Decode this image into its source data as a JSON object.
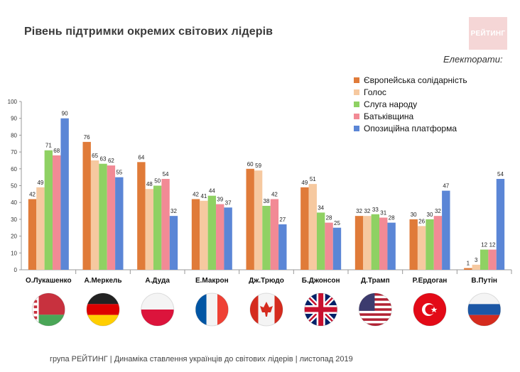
{
  "page": {
    "title": "Рівень підтримки окремих світових лідерів",
    "logo_text": "РЕЙТИНГ",
    "footer": "група РЕЙТИНГ | Динаміка ставлення українців до світових лідерів  | листопад 2019"
  },
  "legend": {
    "title": "Електорати:",
    "position": "top-right"
  },
  "chart_data": {
    "type": "bar",
    "categories": [
      "О.Лукашенко",
      "А.Меркель",
      "А.Дуда",
      "Е.Макрон",
      "Дж.Трюдо",
      "Б.Джонсон",
      "Д.Трамп",
      "Р.Ердоган",
      "В.Путін"
    ],
    "series": [
      {
        "name": "Європейська солідарність",
        "color": "#e07b39",
        "values": [
          42,
          76,
          64,
          42,
          60,
          49,
          32,
          30,
          1
        ]
      },
      {
        "name": "Голос",
        "color": "#f6c9a0",
        "values": [
          49,
          65,
          48,
          41,
          59,
          51,
          32,
          26,
          3
        ]
      },
      {
        "name": "Слуга народу",
        "color": "#8fd163",
        "values": [
          71,
          63,
          50,
          44,
          38,
          34,
          33,
          30,
          12
        ]
      },
      {
        "name": "Батьківщина",
        "color": "#f28a95",
        "values": [
          68,
          62,
          54,
          39,
          42,
          28,
          31,
          32,
          12
        ]
      },
      {
        "name": "Опозиційна платформа",
        "color": "#5b86d6",
        "values": [
          90,
          55,
          32,
          37,
          27,
          25,
          28,
          47,
          54
        ]
      }
    ],
    "ylim": [
      0,
      100
    ],
    "yticks": [
      0,
      10,
      20,
      30,
      40,
      50,
      60,
      70,
      80,
      90,
      100
    ],
    "grid": false,
    "flags": [
      "belarus",
      "germany",
      "poland",
      "france",
      "canada",
      "uk",
      "usa",
      "turkey",
      "russia"
    ]
  }
}
